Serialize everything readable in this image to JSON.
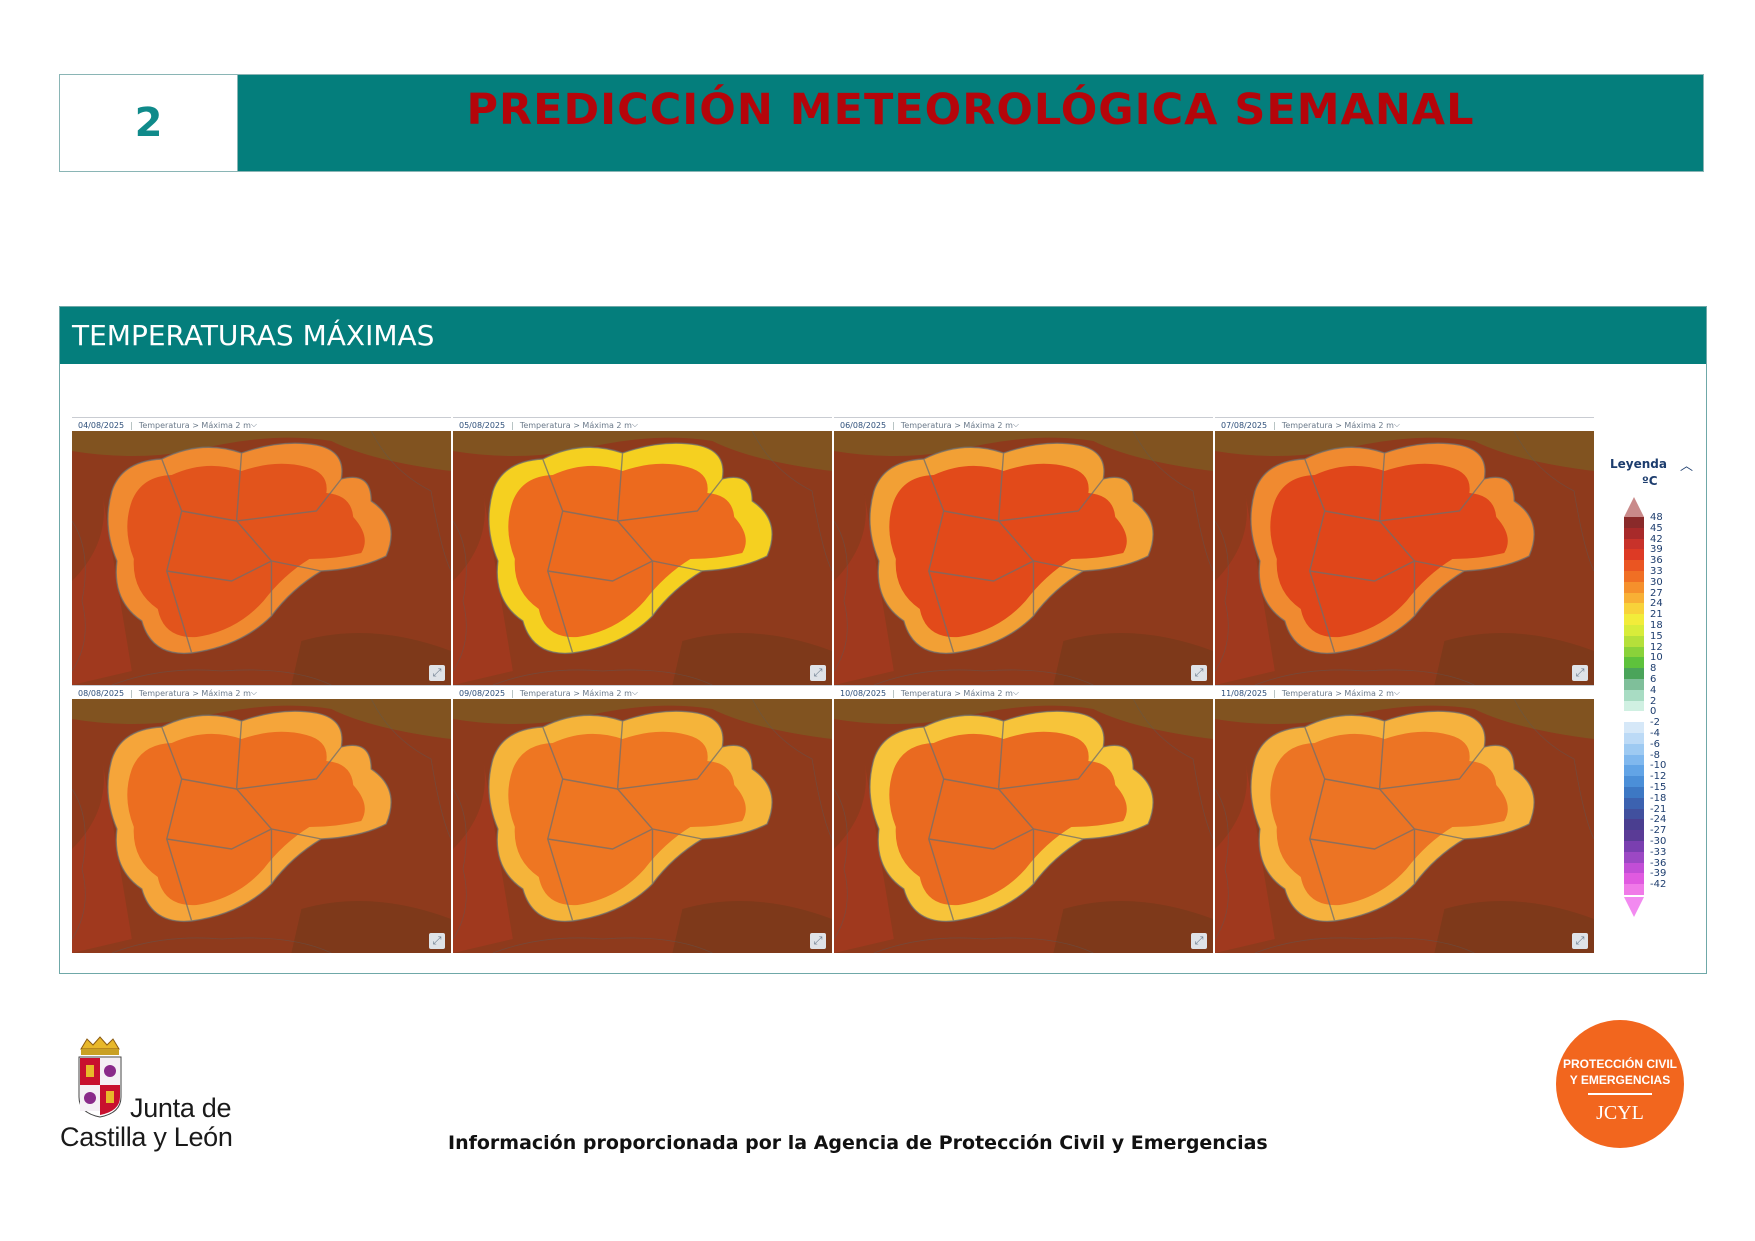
{
  "header": {
    "section_number": "2",
    "title": "PREDICCIÓN METEOROLÓGICA SEMANAL"
  },
  "panel": {
    "title": "TEMPERATURAS MÁXIMAS"
  },
  "maps": [
    {
      "date": "04/08/2025",
      "variable": "Temperatura > Máxima 2 m"
    },
    {
      "date": "05/08/2025",
      "variable": "Temperatura > Máxima 2 m"
    },
    {
      "date": "06/08/2025",
      "variable": "Temperatura > Máxima 2 m"
    },
    {
      "date": "07/08/2025",
      "variable": "Temperatura > Máxima 2 m"
    },
    {
      "date": "08/08/2025",
      "variable": "Temperatura > Máxima 2 m"
    },
    {
      "date": "09/08/2025",
      "variable": "Temperatura > Máxima 2 m"
    },
    {
      "date": "10/08/2025",
      "variable": "Temperatura > Máxima 2 m"
    },
    {
      "date": "11/08/2025",
      "variable": "Temperatura > Máxima 2 m"
    }
  ],
  "map_core_colors": [
    "#e2541c",
    "#ec6a1e",
    "#e24a1a",
    "#e0461a",
    "#ec6e20",
    "#ee7622",
    "#ea6a20",
    "#ec7424"
  ],
  "map_edge_colors": [
    "#f08a30",
    "#f5d020",
    "#f2a035",
    "#f08a30",
    "#f5a53a",
    "#f5b43a",
    "#f7c43a",
    "#f6b23e"
  ],
  "legend": {
    "title": "Leyenda",
    "unit": "ºC",
    "labels": [
      "48",
      "45",
      "42",
      "39",
      "36",
      "33",
      "30",
      "27",
      "24",
      "21",
      "18",
      "15",
      "12",
      "10",
      "8",
      "6",
      "4",
      "2",
      "0",
      "-2",
      "-4",
      "-6",
      "-8",
      "-10",
      "-12",
      "-15",
      "-18",
      "-21",
      "-24",
      "-27",
      "-30",
      "-33",
      "-36",
      "-39",
      "-42"
    ],
    "colors": [
      "#8a2a2a",
      "#a82a2a",
      "#c8322a",
      "#dd3a25",
      "#ea5522",
      "#f06f24",
      "#f5902c",
      "#f8b035",
      "#f8d23a",
      "#f2ec3a",
      "#d8ec3a",
      "#b5e03a",
      "#8ad23a",
      "#5ec23c",
      "#4aa45a",
      "#7fbf9a",
      "#a8dcc3",
      "#d0f0e2",
      "#ffffff",
      "#d6e8f8",
      "#bcdaf6",
      "#9ecaf2",
      "#80b8ee",
      "#62a4e6",
      "#4b8fd8",
      "#3d78c4",
      "#3c62b0",
      "#41509e",
      "#4a3e90",
      "#5a3b96",
      "#7a3fb0",
      "#9c48c4",
      "#c24ed6",
      "#e05ae0",
      "#f07ae8"
    ]
  },
  "footer": {
    "brand_line1": "Junta de",
    "brand_line2": "Castilla y León",
    "credit": "Información proporcionada por la Agencia de Protección Civil y Emergencias",
    "pc_line1": "PROTECCIÓN CIVIL",
    "pc_line2": "Y EMERGENCIAS",
    "pc_line3": "JCYL"
  }
}
